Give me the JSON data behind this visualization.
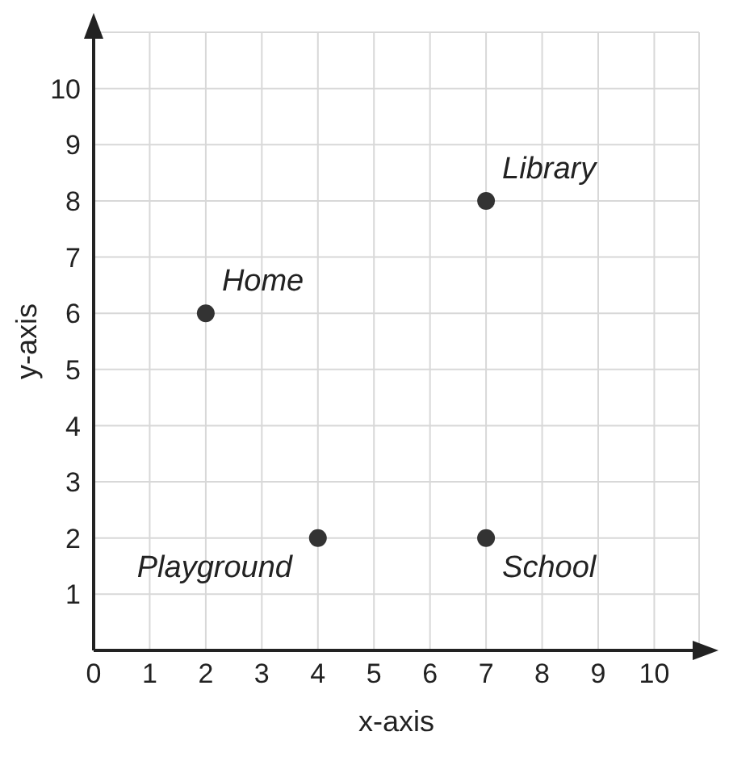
{
  "chart_data": {
    "type": "scatter",
    "xlabel": "x-axis",
    "ylabel": "y-axis",
    "x": [
      2,
      7,
      4,
      7
    ],
    "values": [
      6,
      8,
      2,
      2
    ],
    "color": "#333333",
    "marker": "circle",
    "xlim": [
      0,
      10.8
    ],
    "ylim": [
      0,
      11
    ],
    "xticks": [
      0,
      1,
      2,
      3,
      4,
      5,
      6,
      7,
      8,
      9,
      10
    ],
    "yticks": [
      1,
      2,
      3,
      4,
      5,
      6,
      7,
      8,
      9,
      10
    ],
    "grid": true,
    "annotations": [
      {
        "text": "Home",
        "x": 2,
        "y": 6
      },
      {
        "text": "Library",
        "x": 7,
        "y": 8
      },
      {
        "text": "Playground",
        "x": 4,
        "y": 2
      },
      {
        "text": "School",
        "x": 7,
        "y": 2
      }
    ]
  }
}
